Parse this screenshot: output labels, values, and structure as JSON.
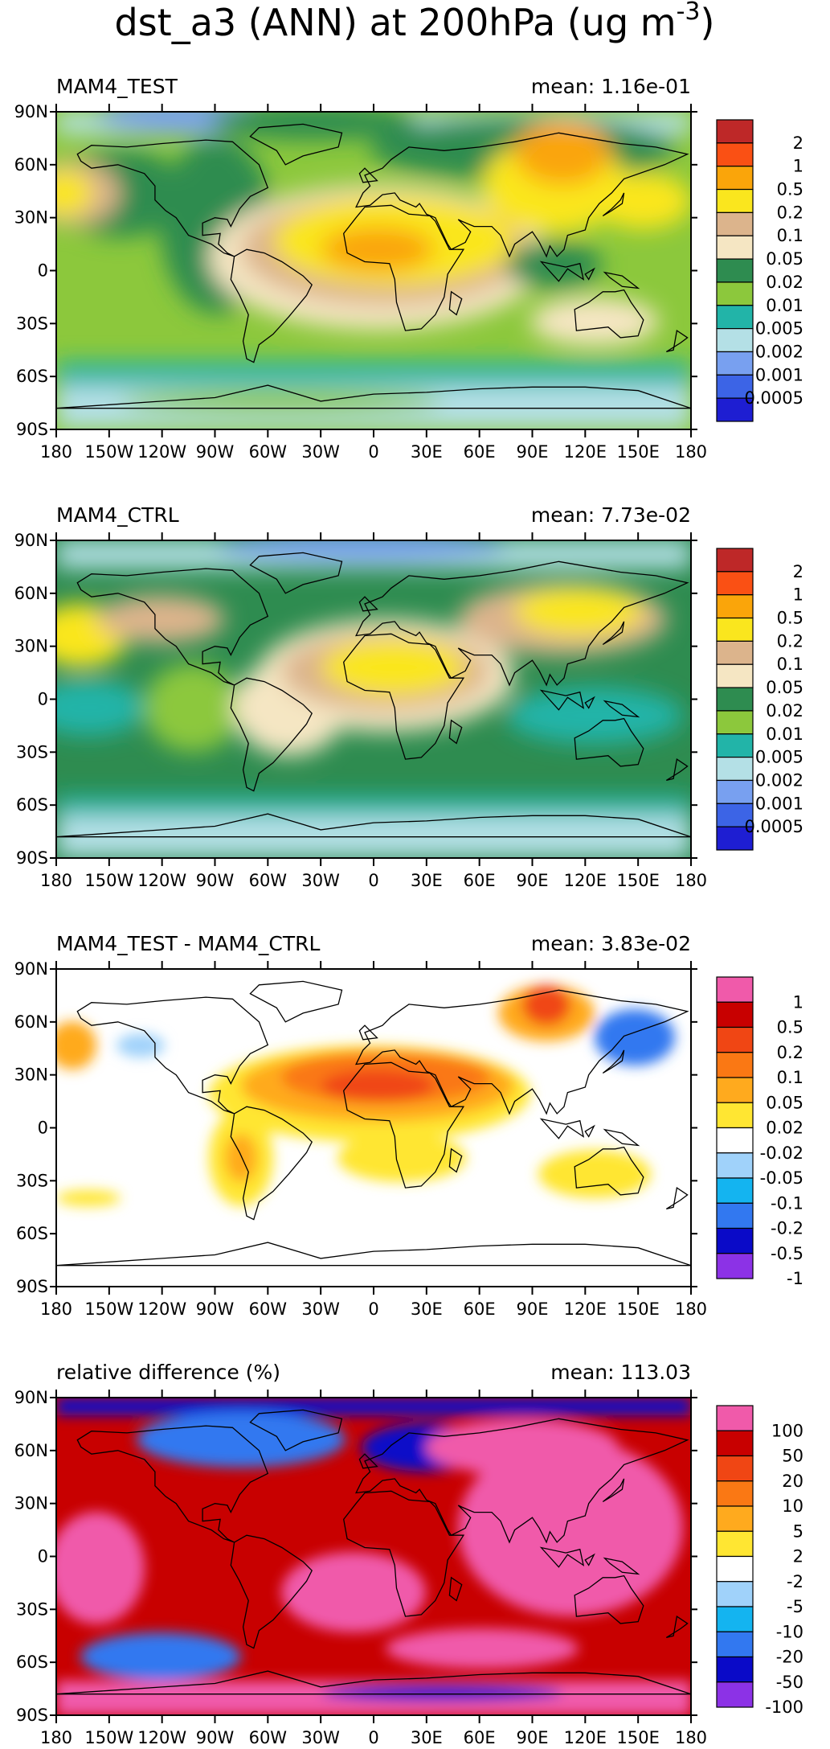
{
  "figure": {
    "title": "dst_a3 (ANN) at 200hPa (ug m",
    "title_exp": "-3",
    "title_close": ")"
  },
  "axes": {
    "lat_labels": [
      "90N",
      "60N",
      "30N",
      "0",
      "30S",
      "60S",
      "90S"
    ],
    "lon_labels": [
      "180",
      "150W",
      "120W",
      "90W",
      "60W",
      "30W",
      "0",
      "30E",
      "60E",
      "90E",
      "120E",
      "150E",
      "180"
    ]
  },
  "colors": {
    "conc_scale": [
      "#1e1ed2",
      "#3c64e6",
      "#78a0f0",
      "#b4e0e6",
      "#22b4a8",
      "#8cc83c",
      "#2e8c50",
      "#f5e6c3",
      "#dcb48c",
      "#fae61e",
      "#faa50a",
      "#fa5014",
      "#be2828"
    ],
    "diff_scale": [
      "#8c32e6",
      "#0a0ac8",
      "#3278f0",
      "#14b4f0",
      "#a0d2fa",
      "#ffffff",
      "#ffe632",
      "#ffaa1e",
      "#fa7814",
      "#f04614",
      "#c80000",
      "#f05aaa"
    ],
    "ocean_conc": "#2e8c50",
    "land_outline": "#000000"
  },
  "panels": [
    {
      "name": "MAM4_TEST",
      "mean_label": "mean: 1.16e-01",
      "colorbar_labels": [
        "2",
        "1",
        "0.5",
        "0.2",
        "0.1",
        "0.05",
        "0.02",
        "0.01",
        "0.005",
        "0.002",
        "0.001",
        "0.0005"
      ]
    },
    {
      "name": "MAM4_CTRL",
      "mean_label": "mean: 7.73e-02",
      "colorbar_labels": [
        "2",
        "1",
        "0.5",
        "0.2",
        "0.1",
        "0.05",
        "0.02",
        "0.01",
        "0.005",
        "0.002",
        "0.001",
        "0.0005"
      ]
    },
    {
      "name": "MAM4_TEST - MAM4_CTRL",
      "mean_label": "mean: 3.83e-02",
      "colorbar_labels": [
        "1",
        "0.5",
        "0.2",
        "0.1",
        "0.05",
        "0.02",
        "-0.02",
        "-0.05",
        "-0.1",
        "-0.2",
        "-0.5",
        "-1"
      ]
    },
    {
      "name": "relative difference (%)",
      "mean_label": "mean: 113.03",
      "colorbar_labels": [
        "100",
        "50",
        "20",
        "10",
        "5",
        "2",
        "-2",
        "-5",
        "-10",
        "-20",
        "-50",
        "-100"
      ]
    }
  ]
}
